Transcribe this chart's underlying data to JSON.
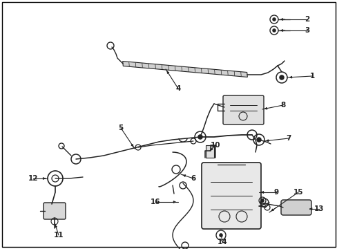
{
  "background_color": "#ffffff",
  "border_color": "#000000",
  "text_color": "#000000",
  "fig_width": 4.89,
  "fig_height": 3.6,
  "dpi": 100,
  "line_color": "#222222",
  "label_fontsize": 7.5
}
